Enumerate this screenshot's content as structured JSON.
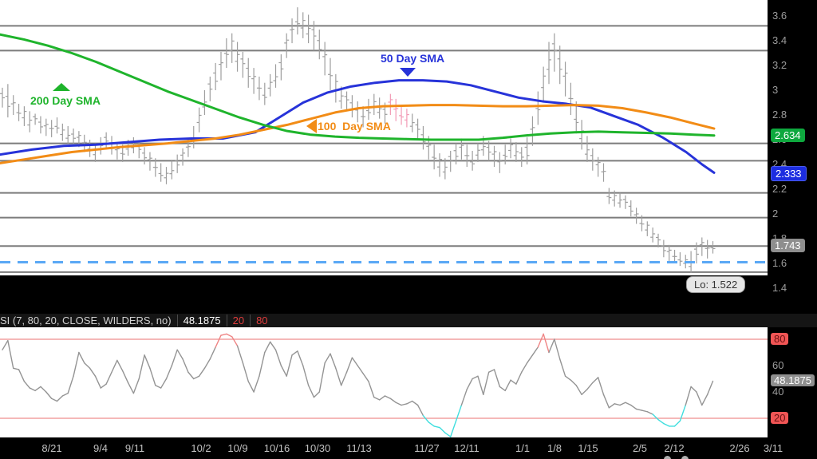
{
  "colors": {
    "plot_bg": "#ffffff",
    "support": "#7c7c7c",
    "candle": "#9e9e9e",
    "candle_highlight": "#f29ab5",
    "sma50": "#2733d9",
    "sma100": "#f28c16",
    "sma200": "#1fb42c",
    "dashed": "#5aa8f5",
    "rsi_line": "#949494",
    "rsi_over": "#ef8585",
    "rsi_under": "#3fdede",
    "rsi_band": "#f2a0a0",
    "axis_text": "#9c9c9c"
  },
  "price_panel": {
    "annotations": {
      "sma200_label": "200 Day SMA",
      "sma50_label": "50 Day SMA",
      "sma100_label": "100  Day SMA",
      "low_label": "Lo: 1.522"
    },
    "y_axis": {
      "ticks": [
        "3.6",
        "3.4",
        "3.2",
        "3",
        "2.8",
        "2.6",
        "2.4",
        "2.2",
        "2",
        "1.8",
        "1.6",
        "1.4"
      ],
      "badges": {
        "sma200_value": "2.634",
        "sma50_value": "2.333",
        "last_price": "1.743"
      }
    }
  },
  "rsi_panel": {
    "header": {
      "label": "SI (7, 80, 20, CLOSE, WILDERS, no)",
      "value": "48.1875",
      "oversold": "20",
      "overbought": "80"
    },
    "y_axis": {
      "overbought": "80",
      "t60": "60",
      "value": "48.1875",
      "t40": "40",
      "oversold": "20"
    }
  },
  "chart_data": {
    "type": "ohlc",
    "title": "",
    "price_axis": {
      "ticks": [
        3.6,
        3.4,
        3.2,
        3,
        2.8,
        2.6,
        2.4,
        2.2,
        2,
        1.8,
        1.6,
        1.4
      ],
      "visible_range": [
        1.5,
        3.73
      ]
    },
    "x_axis": {
      "tick_labels": [
        "8/21",
        "9/4",
        "9/11",
        "10/2",
        "10/9",
        "10/16",
        "10/30",
        "11/13",
        "11/27",
        "12/11",
        "1/1",
        "1/8",
        "1/15",
        "2/5",
        "2/12",
        "2/26",
        "3/11"
      ],
      "tick_x": [
        65,
        126,
        169,
        252,
        298,
        347,
        398,
        450,
        535,
        585,
        655,
        695,
        737,
        802,
        845,
        927,
        969
      ]
    },
    "support_levels": [
      3.52,
      3.32,
      2.57,
      2.43,
      2.17,
      1.97,
      1.74,
      1.53
    ],
    "dashed_support_level": 1.61,
    "low_annotation_value": 1.522,
    "last_price": 1.743,
    "bars_high_low": [
      [
        3.02,
        2.86
      ],
      [
        3.05,
        2.78
      ],
      [
        2.96,
        2.8
      ],
      [
        2.89,
        2.75
      ],
      [
        2.87,
        2.71
      ],
      [
        2.83,
        2.66
      ],
      [
        2.81,
        2.72
      ],
      [
        2.79,
        2.65
      ],
      [
        2.77,
        2.63
      ],
      [
        2.76,
        2.62
      ],
      [
        2.78,
        2.65
      ],
      [
        2.73,
        2.59
      ],
      [
        2.71,
        2.57
      ],
      [
        2.69,
        2.55
      ],
      [
        2.67,
        2.54
      ],
      [
        2.64,
        2.5
      ],
      [
        2.6,
        2.46
      ],
      [
        2.57,
        2.42
      ],
      [
        2.62,
        2.48
      ],
      [
        2.66,
        2.52
      ],
      [
        2.63,
        2.48
      ],
      [
        2.58,
        2.44
      ],
      [
        2.56,
        2.42
      ],
      [
        2.6,
        2.47
      ],
      [
        2.62,
        2.49
      ],
      [
        2.58,
        2.45
      ],
      [
        2.54,
        2.4
      ],
      [
        2.5,
        2.35
      ],
      [
        2.45,
        2.3
      ],
      [
        2.41,
        2.26
      ],
      [
        2.38,
        2.24
      ],
      [
        2.43,
        2.28
      ],
      [
        2.48,
        2.33
      ],
      [
        2.53,
        2.39
      ],
      [
        2.61,
        2.46
      ],
      [
        2.71,
        2.53
      ],
      [
        2.86,
        2.66
      ],
      [
        3.0,
        2.8
      ],
      [
        3.11,
        2.91
      ],
      [
        3.22,
        3.0
      ],
      [
        3.31,
        3.08
      ],
      [
        3.42,
        3.18
      ],
      [
        3.46,
        3.22
      ],
      [
        3.39,
        3.15
      ],
      [
        3.31,
        3.1
      ],
      [
        3.26,
        3.02
      ],
      [
        3.18,
        2.97
      ],
      [
        3.11,
        2.92
      ],
      [
        3.06,
        2.88
      ],
      [
        3.13,
        2.95
      ],
      [
        3.21,
        3.02
      ],
      [
        3.29,
        3.08
      ],
      [
        3.46,
        3.26
      ],
      [
        3.58,
        3.38
      ],
      [
        3.67,
        3.45
      ],
      [
        3.63,
        3.42
      ],
      [
        3.61,
        3.38
      ],
      [
        3.56,
        3.32
      ],
      [
        3.49,
        3.25
      ],
      [
        3.39,
        3.12
      ],
      [
        3.26,
        3.0
      ],
      [
        3.13,
        2.9
      ],
      [
        3.03,
        2.85
      ],
      [
        2.99,
        2.84
      ],
      [
        2.96,
        2.78
      ],
      [
        2.91,
        2.74
      ],
      [
        2.87,
        2.7
      ],
      [
        2.93,
        2.76
      ],
      [
        2.97,
        2.8
      ],
      [
        2.94,
        2.77
      ],
      [
        2.9,
        2.73
      ],
      [
        2.97,
        2.8
      ],
      [
        2.93,
        2.75
      ],
      [
        2.88,
        2.72
      ],
      [
        2.85,
        2.7
      ],
      [
        2.81,
        2.66
      ],
      [
        2.77,
        2.6
      ],
      [
        2.71,
        2.52
      ],
      [
        2.63,
        2.44
      ],
      [
        2.56,
        2.36
      ],
      [
        2.49,
        2.3
      ],
      [
        2.45,
        2.28
      ],
      [
        2.51,
        2.34
      ],
      [
        2.57,
        2.4
      ],
      [
        2.61,
        2.44
      ],
      [
        2.56,
        2.38
      ],
      [
        2.51,
        2.35
      ],
      [
        2.57,
        2.42
      ],
      [
        2.63,
        2.47
      ],
      [
        2.59,
        2.43
      ],
      [
        2.55,
        2.38
      ],
      [
        2.5,
        2.33
      ],
      [
        2.56,
        2.4
      ],
      [
        2.61,
        2.45
      ],
      [
        2.58,
        2.42
      ],
      [
        2.54,
        2.38
      ],
      [
        2.62,
        2.4
      ],
      [
        2.79,
        2.55
      ],
      [
        2.99,
        2.72
      ],
      [
        3.19,
        2.9
      ],
      [
        3.39,
        3.05
      ],
      [
        3.46,
        3.15
      ],
      [
        3.36,
        3.05
      ],
      [
        3.23,
        2.95
      ],
      [
        3.06,
        2.8
      ],
      [
        2.91,
        2.65
      ],
      [
        2.76,
        2.52
      ],
      [
        2.63,
        2.42
      ],
      [
        2.53,
        2.35
      ],
      [
        2.46,
        2.3
      ],
      [
        2.41,
        2.26
      ],
      [
        2.21,
        2.08
      ],
      [
        2.19,
        2.06
      ],
      [
        2.17,
        2.05
      ],
      [
        2.15,
        2.04
      ],
      [
        2.11,
        1.98
      ],
      [
        2.05,
        1.92
      ],
      [
        1.99,
        1.86
      ],
      [
        1.94,
        1.82
      ],
      [
        1.89,
        1.77
      ],
      [
        1.84,
        1.73
      ],
      [
        1.79,
        1.65
      ],
      [
        1.75,
        1.62
      ],
      [
        1.71,
        1.6
      ],
      [
        1.69,
        1.58
      ],
      [
        1.67,
        1.56
      ],
      [
        1.7,
        1.522
      ],
      [
        1.77,
        1.6
      ],
      [
        1.81,
        1.66
      ],
      [
        1.79,
        1.64
      ],
      [
        1.78,
        1.68
      ]
    ],
    "highlight_bar_indices": [
      71,
      72,
      73,
      74
    ],
    "series": [
      {
        "name": "50 Day SMA",
        "color_key": "sma50",
        "points": [
          [
            0,
            2.48
          ],
          [
            40,
            2.52
          ],
          [
            80,
            2.55
          ],
          [
            120,
            2.56
          ],
          [
            160,
            2.58
          ],
          [
            200,
            2.6
          ],
          [
            240,
            2.61
          ],
          [
            280,
            2.61
          ],
          [
            320,
            2.66
          ],
          [
            350,
            2.78
          ],
          [
            380,
            2.9
          ],
          [
            410,
            2.98
          ],
          [
            440,
            3.03
          ],
          [
            470,
            3.06
          ],
          [
            500,
            3.08
          ],
          [
            530,
            3.08
          ],
          [
            560,
            3.07
          ],
          [
            590,
            3.04
          ],
          [
            620,
            2.99
          ],
          [
            650,
            2.94
          ],
          [
            680,
            2.91
          ],
          [
            710,
            2.89
          ],
          [
            740,
            2.86
          ],
          [
            770,
            2.79
          ],
          [
            800,
            2.72
          ],
          [
            830,
            2.62
          ],
          [
            860,
            2.5
          ],
          [
            880,
            2.4
          ],
          [
            895,
            2.333
          ]
        ]
      },
      {
        "name": "100 Day SMA",
        "color_key": "sma100",
        "points": [
          [
            0,
            2.41
          ],
          [
            30,
            2.44
          ],
          [
            60,
            2.47
          ],
          [
            90,
            2.5
          ],
          [
            120,
            2.52
          ],
          [
            150,
            2.54
          ],
          [
            180,
            2.555
          ],
          [
            210,
            2.57
          ],
          [
            240,
            2.59
          ],
          [
            270,
            2.61
          ],
          [
            300,
            2.64
          ],
          [
            330,
            2.68
          ],
          [
            360,
            2.72
          ],
          [
            390,
            2.77
          ],
          [
            420,
            2.82
          ],
          [
            450,
            2.855
          ],
          [
            480,
            2.87
          ],
          [
            510,
            2.875
          ],
          [
            540,
            2.88
          ],
          [
            570,
            2.88
          ],
          [
            600,
            2.875
          ],
          [
            630,
            2.87
          ],
          [
            660,
            2.87
          ],
          [
            690,
            2.875
          ],
          [
            720,
            2.88
          ],
          [
            750,
            2.875
          ],
          [
            780,
            2.855
          ],
          [
            810,
            2.82
          ],
          [
            840,
            2.78
          ],
          [
            870,
            2.73
          ],
          [
            895,
            2.69
          ]
        ]
      },
      {
        "name": "200 Day SMA",
        "color_key": "sma200",
        "points": [
          [
            0,
            3.45
          ],
          [
            30,
            3.41
          ],
          [
            60,
            3.36
          ],
          [
            90,
            3.3
          ],
          [
            120,
            3.23
          ],
          [
            150,
            3.15
          ],
          [
            180,
            3.07
          ],
          [
            210,
            2.99
          ],
          [
            240,
            2.92
          ],
          [
            270,
            2.85
          ],
          [
            300,
            2.78
          ],
          [
            330,
            2.72
          ],
          [
            360,
            2.67
          ],
          [
            390,
            2.64
          ],
          [
            420,
            2.625
          ],
          [
            450,
            2.615
          ],
          [
            480,
            2.61
          ],
          [
            510,
            2.605
          ],
          [
            540,
            2.6
          ],
          [
            570,
            2.6
          ],
          [
            600,
            2.6
          ],
          [
            630,
            2.615
          ],
          [
            660,
            2.635
          ],
          [
            690,
            2.65
          ],
          [
            720,
            2.66
          ],
          [
            750,
            2.665
          ],
          [
            780,
            2.66
          ],
          [
            810,
            2.655
          ],
          [
            840,
            2.65
          ],
          [
            870,
            2.64
          ],
          [
            895,
            2.634
          ]
        ]
      }
    ],
    "rsi": {
      "parameters_text": "(7, 80, 20, CLOSE, WILDERS, no)",
      "last": 48.1875,
      "overbought": 80,
      "oversold": 20,
      "values": [
        72,
        79,
        58,
        57,
        48,
        43,
        41,
        44,
        40,
        35,
        33,
        37,
        39,
        52,
        70,
        62,
        58,
        52,
        43,
        46,
        55,
        64,
        56,
        47,
        39,
        50,
        68,
        58,
        45,
        43,
        50,
        60,
        72,
        65,
        55,
        50,
        52,
        58,
        65,
        74,
        83,
        84,
        82,
        75,
        62,
        48,
        40,
        52,
        70,
        78,
        72,
        60,
        52,
        68,
        71,
        60,
        45,
        36,
        40,
        62,
        69,
        58,
        45,
        55,
        66,
        60,
        54,
        48,
        36,
        34,
        37,
        35,
        32,
        30,
        31,
        33,
        30,
        22,
        17,
        14,
        13,
        9,
        6,
        18,
        30,
        42,
        50,
        52,
        38,
        55,
        57,
        44,
        41,
        49,
        46,
        55,
        62,
        68,
        74,
        84,
        70,
        80,
        65,
        52,
        49,
        45,
        38,
        42,
        47,
        51,
        38,
        28,
        31,
        30,
        32,
        30,
        27,
        26,
        25,
        23,
        19,
        16,
        14,
        14,
        18,
        30,
        44,
        40,
        30,
        38,
        48.1875
      ]
    }
  }
}
